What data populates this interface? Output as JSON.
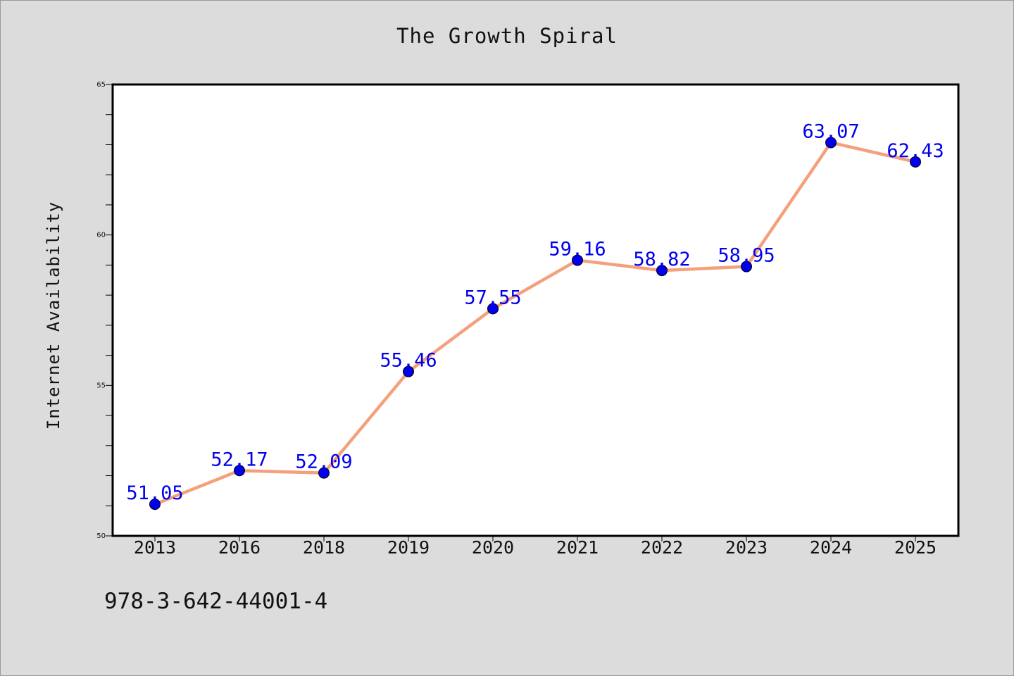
{
  "chart_data": {
    "type": "line",
    "title": "The Growth Spiral",
    "xlabel": "",
    "ylabel": "Internet Availability",
    "categories": [
      "2013",
      "2016",
      "2018",
      "2019",
      "2020",
      "2021",
      "2022",
      "2023",
      "2024",
      "2025"
    ],
    "series": [
      {
        "values": [
          51.05,
          52.17,
          52.09,
          55.46,
          57.55,
          59.16,
          58.82,
          58.95,
          63.07,
          62.43
        ],
        "data_labels": [
          "51.05",
          "52.17",
          "52.09",
          "55.46",
          "57.55",
          "59.16",
          "58.82",
          "58.95",
          "63.07",
          "62.43"
        ],
        "line_color": "#f4a07c",
        "marker_color": "#0000ee",
        "label_color": "#0000ee"
      }
    ],
    "ylim": [
      50,
      65
    ],
    "y_tick_labels": [
      "50",
      "55",
      "60",
      "65"
    ],
    "y_minor_step": 1,
    "grid": false,
    "legend": "none"
  },
  "footer": {
    "code": "978-3-642-44001-4"
  },
  "colors": {
    "background": "#dcdcdc",
    "plot_background": "#ffffff",
    "axis": "#000000"
  }
}
